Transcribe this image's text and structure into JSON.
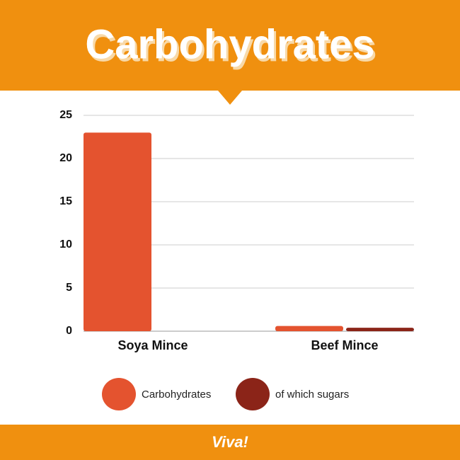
{
  "chart_data": {
    "type": "bar",
    "title": "Carbohydrates",
    "categories": [
      "Soya Mince",
      "Beef Mince"
    ],
    "series": [
      {
        "name": "Carbohydrates",
        "color": "#e4532f",
        "values": [
          23,
          0.6
        ]
      },
      {
        "name": "of which sugars",
        "color": "#8b2418",
        "values": [
          0,
          0.4
        ]
      }
    ],
    "ylim": [
      0,
      25
    ],
    "yticks": [
      0,
      5,
      10,
      15,
      20,
      25
    ],
    "grid": true,
    "brand": "Viva!"
  }
}
